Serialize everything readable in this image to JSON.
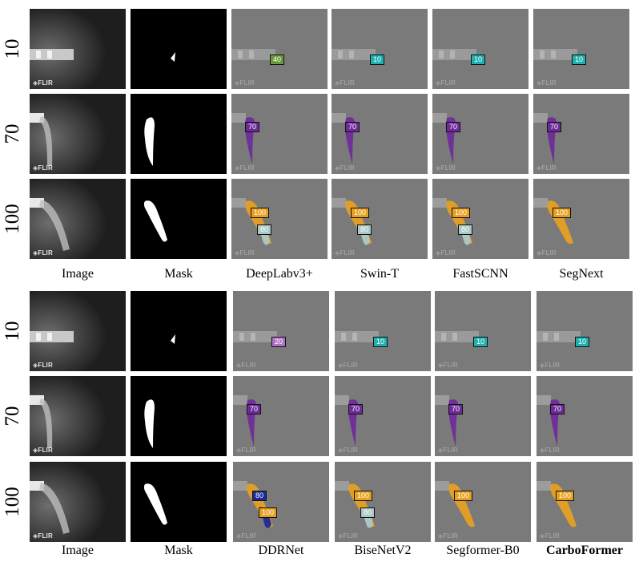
{
  "sections": [
    {
      "row_labels": [
        "10",
        "70",
        "100"
      ],
      "columns": [
        {
          "label": "Image",
          "kind": "image"
        },
        {
          "label": "Mask",
          "kind": "mask"
        },
        {
          "label": "DeepLabv3+",
          "kind": "pred",
          "badges": [
            [
              {
                "text": "40",
                "color": "#6a9a3a"
              }
            ],
            [
              {
                "text": "70",
                "color": "#6e2a9a"
              }
            ],
            [
              {
                "text": "100",
                "color": "#e8a020"
              },
              {
                "text": "80",
                "color": "#a9c8c8"
              }
            ]
          ]
        },
        {
          "label": "Swin-T",
          "kind": "pred",
          "badges": [
            [
              {
                "text": "10",
                "color": "#20b0b0"
              }
            ],
            [
              {
                "text": "70",
                "color": "#6e2a9a"
              }
            ],
            [
              {
                "text": "100",
                "color": "#e8a020"
              },
              {
                "text": "80",
                "color": "#a9c8c8"
              }
            ]
          ]
        },
        {
          "label": "FastSCNN",
          "kind": "pred",
          "badges": [
            [
              {
                "text": "10",
                "color": "#20b0b0"
              }
            ],
            [
              {
                "text": "70",
                "color": "#6e2a9a"
              }
            ],
            [
              {
                "text": "100",
                "color": "#e8a020"
              },
              {
                "text": "80",
                "color": "#a9c8c8"
              }
            ]
          ]
        },
        {
          "label": "SegNext",
          "kind": "pred",
          "badges": [
            [
              {
                "text": "10",
                "color": "#20b0b0"
              }
            ],
            [
              {
                "text": "70",
                "color": "#6e2a9a"
              }
            ],
            [
              {
                "text": "100",
                "color": "#e8a020"
              }
            ]
          ]
        }
      ]
    },
    {
      "row_labels": [
        "10",
        "70",
        "100"
      ],
      "columns": [
        {
          "label": "Image",
          "kind": "image"
        },
        {
          "label": "Mask",
          "kind": "mask"
        },
        {
          "label": "DDRNet",
          "kind": "pred",
          "badges": [
            [
              {
                "text": "20",
                "color": "#b070c8"
              }
            ],
            [
              {
                "text": "70",
                "color": "#6e2a9a"
              }
            ],
            [
              {
                "text": "80",
                "color": "#1a2a9a"
              },
              {
                "text": "100",
                "color": "#e8a020"
              }
            ]
          ]
        },
        {
          "label": "BiseNetV2",
          "kind": "pred",
          "badges": [
            [
              {
                "text": "10",
                "color": "#20b0b0"
              }
            ],
            [
              {
                "text": "70",
                "color": "#6e2a9a"
              }
            ],
            [
              {
                "text": "100",
                "color": "#e8a020"
              },
              {
                "text": "80",
                "color": "#a9c8c8"
              }
            ]
          ]
        },
        {
          "label": "Segformer-B0",
          "kind": "pred",
          "badges": [
            [
              {
                "text": "10",
                "color": "#20b0b0"
              }
            ],
            [
              {
                "text": "70",
                "color": "#6e2a9a"
              }
            ],
            [
              {
                "text": "100",
                "color": "#e8a020"
              }
            ]
          ]
        },
        {
          "label": "CarboFormer",
          "kind": "pred",
          "bold": true,
          "badges": [
            [
              {
                "text": "10",
                "color": "#20b0b0"
              }
            ],
            [
              {
                "text": "70",
                "color": "#6e2a9a"
              }
            ],
            [
              {
                "text": "100",
                "color": "#e8a020"
              }
            ]
          ]
        }
      ]
    }
  ],
  "watermark": "FLIR"
}
